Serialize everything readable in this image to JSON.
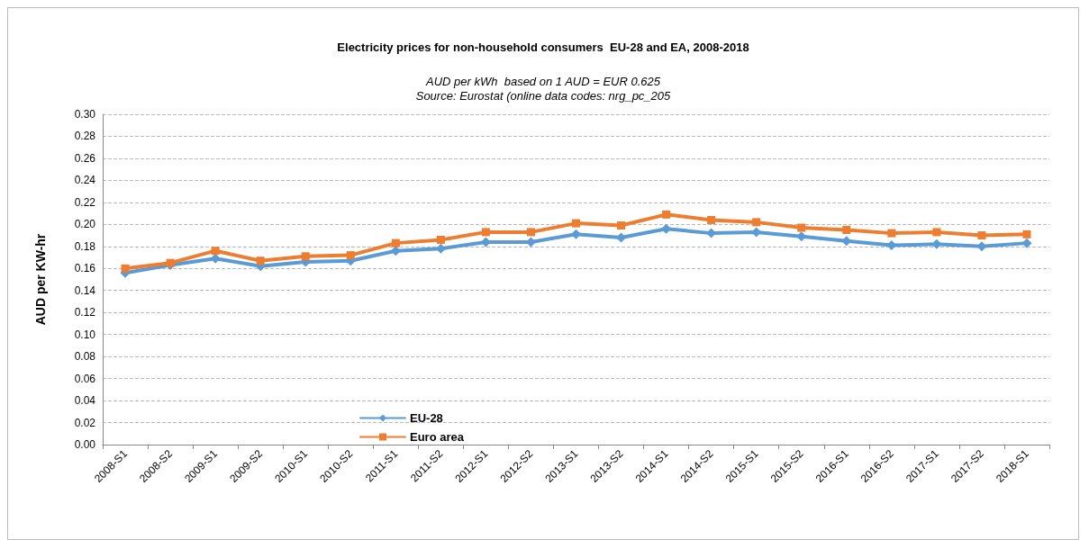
{
  "chart_data": {
    "type": "line",
    "title": "Electricity prices for non-household consumers  EU-28 and EA, 2008-2018",
    "subtitle": "AUD per kWh  based on 1 AUD = EUR 0.625",
    "annotations": [
      "Source: Eurostat (online data codes: nrg_pc_205"
    ],
    "ylabel": "AUD per KW-hr",
    "categories": [
      "2008-S1",
      "2008-S2",
      "2009-S1",
      "2009-S2",
      "2010-S1",
      "2010-S2",
      "2011-S1",
      "2011-S2",
      "2012-S1",
      "2012-S2",
      "2013-S1",
      "2013-S2",
      "2014-S1",
      "2014-S2",
      "2015-S1",
      "2015-S2",
      "2016-S1",
      "2016-S2",
      "2017-S1",
      "2017-S2",
      "2018-S1"
    ],
    "series": [
      {
        "name": "EU-28",
        "color": "#5b9bd5",
        "marker": "diamond",
        "values": [
          0.156,
          0.163,
          0.169,
          0.162,
          0.166,
          0.167,
          0.176,
          0.178,
          0.184,
          0.184,
          0.191,
          0.188,
          0.196,
          0.192,
          0.193,
          0.189,
          0.185,
          0.181,
          0.182,
          0.18,
          0.183
        ]
      },
      {
        "name": "Euro area",
        "color": "#ed7d31",
        "marker": "square",
        "values": [
          0.16,
          0.165,
          0.176,
          0.167,
          0.171,
          0.172,
          0.183,
          0.186,
          0.193,
          0.193,
          0.201,
          0.199,
          0.209,
          0.204,
          0.202,
          0.197,
          0.195,
          0.192,
          0.193,
          0.19,
          0.191
        ]
      }
    ],
    "ylim": [
      0,
      0.3
    ],
    "yticks": [
      {
        "value": 0,
        "label": "0.00"
      },
      0.02,
      0.04,
      0.06,
      0.08,
      {
        "value": 0.1,
        "label": "0.10"
      },
      0.12,
      0.14,
      0.16,
      0.18,
      {
        "value": 0.2,
        "label": "0.20"
      },
      0.22,
      0.24,
      0.26,
      0.28,
      {
        "value": 0.3,
        "label": "0.30"
      }
    ],
    "grid": "y",
    "legend": "bottom left",
    "line_style": "solid"
  }
}
